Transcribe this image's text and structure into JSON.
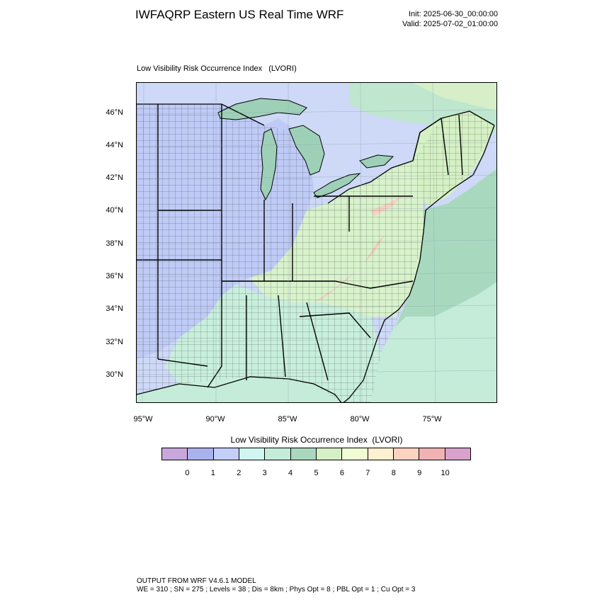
{
  "header": {
    "title": "IWFAQRP Eastern US Real Time WRF",
    "init": "Init: 2025-06-30_00:00:00",
    "valid": "Valid: 2025-07-02_01:00:00"
  },
  "map": {
    "subtitle": "Low Visibility Risk Occurrence Index   (LVORI)",
    "lat_labels": [
      "46°N",
      "44°N",
      "42°N",
      "40°N",
      "38°N",
      "36°N",
      "34°N",
      "32°N",
      "30°N"
    ],
    "lon_labels": [
      "95°W",
      "90°W",
      "85°W",
      "80°W",
      "75°W"
    ]
  },
  "colorbar": {
    "title": "Low Visibility Risk Occurrence Index  (LVORI)",
    "labels": [
      "0",
      "1",
      "2",
      "3",
      "4",
      "5",
      "6",
      "7",
      "8",
      "9",
      "10"
    ],
    "colors": [
      "#c8a8dc",
      "#aab2ee",
      "#c3cff8",
      "#d0f6f2",
      "#c4ecd8",
      "#a9d8bf",
      "#d4f0c4",
      "#f0fcd4",
      "#fef0d0",
      "#fcd2c0",
      "#f0b2b2",
      "#d8a2cc"
    ]
  },
  "footer": {
    "line1": "OUTPUT FROM WRF V4.6.1 MODEL",
    "line2": "WE = 310 ; SN = 275 ; Levels = 38 ; Dis = 8km ; Phys Opt = 8 ; PBL Opt = 1 ; Cu Opt = 3"
  }
}
